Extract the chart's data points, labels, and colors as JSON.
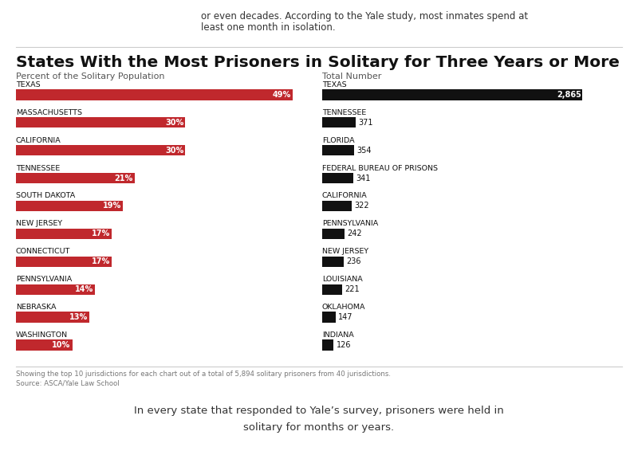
{
  "title": "States With the Most Prisoners in Solitary for Three Years or More",
  "left_subtitle": "Percent of the Solitary Population",
  "right_subtitle": "Total Number",
  "top_text_line1": "or even decades. According to the Yale study, most inmates spend at",
  "top_text_line2": "least one month in isolation.",
  "bottom_text": "In every state that responded to Yale’s survey, prisoners were held in\nsolitary for months or years.",
  "footnote1": "Showing the top 10 jurisdictions for each chart out of a total of 5,894 solitary prisoners from 40 jurisdictions.",
  "footnote2": "Source: ASCA/Yale Law School",
  "left_states": [
    "TEXAS",
    "MASSACHUSETTS",
    "CALIFORNIA",
    "TENNESSEE",
    "SOUTH DAKOTA",
    "NEW JERSEY",
    "CONNECTICUT",
    "PENNSYLVANIA",
    "NEBRASKA",
    "WASHINGTON"
  ],
  "left_values": [
    49,
    30,
    30,
    21,
    19,
    17,
    17,
    14,
    13,
    10
  ],
  "left_labels": [
    "49%",
    "30%",
    "30%",
    "21%",
    "19%",
    "17%",
    "17%",
    "14%",
    "13%",
    "10%"
  ],
  "left_bar_color": "#c0282d",
  "right_states": [
    "TEXAS",
    "TENNESSEE",
    "FLORIDA",
    "FEDERAL BUREAU OF PRISONS",
    "CALIFORNIA",
    "PENNSYLVANIA",
    "NEW JERSEY",
    "LOUISIANA",
    "OKLAHOMA",
    "INDIANA"
  ],
  "right_values": [
    2865,
    371,
    354,
    341,
    322,
    242,
    236,
    221,
    147,
    126
  ],
  "right_labels": [
    "2,865",
    "371",
    "354",
    "341",
    "322",
    "242",
    "236",
    "221",
    "147",
    "126"
  ],
  "right_bar_color": "#111111",
  "background_color": "#ffffff",
  "title_fontsize": 14.5,
  "subtitle_fontsize": 8,
  "label_fontsize": 7,
  "state_fontsize": 6.8,
  "bar_height": 0.38
}
